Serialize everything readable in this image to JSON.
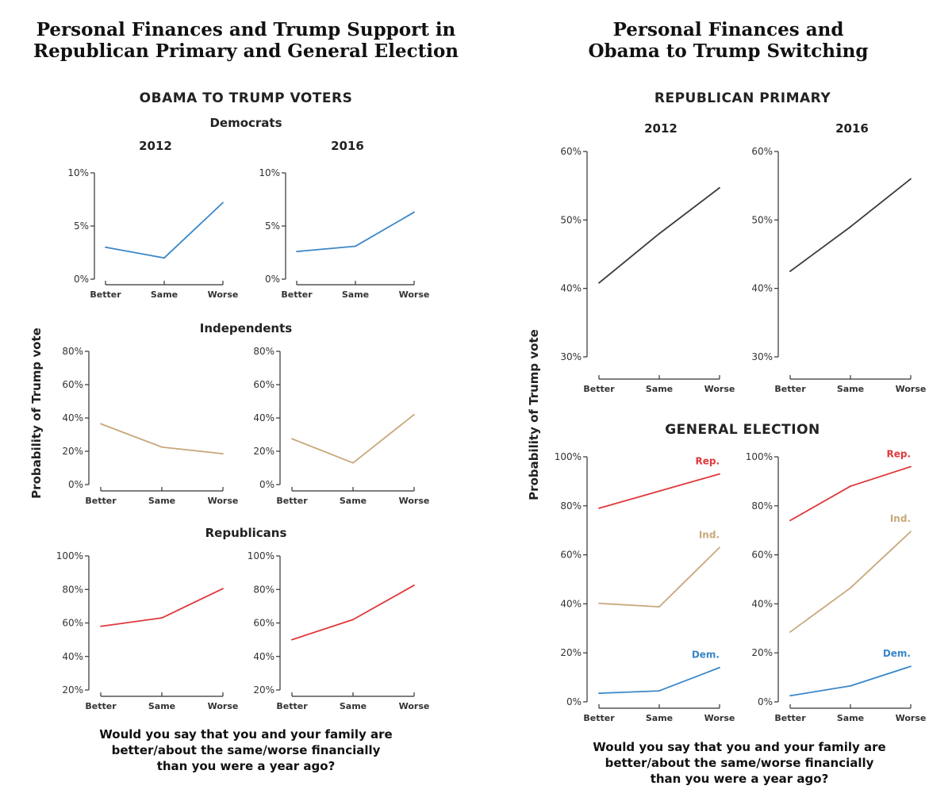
{
  "left": {
    "title_line1": "Personal Finances and Trump Support in",
    "title_line2": "Republican Primary and General Election",
    "section": "OBAMA TO TRUMP VOTERS",
    "group_dem": "Democrats",
    "group_ind": "Independents",
    "group_rep": "Republicans",
    "year_a": "2012",
    "year_b": "2016",
    "ylabel": "Probability of Trump vote",
    "footer_line1": "Would you say that you and your family are",
    "footer_line2": "better/about the same/worse financially",
    "footer_line3": "than you were a year ago?"
  },
  "right": {
    "title_line1": "Personal Finances and",
    "title_line2": "Obama to Trump Switching",
    "section_primary": "REPUBLICAN PRIMARY",
    "section_general": "GENERAL ELECTION",
    "year_a": "2012",
    "year_b": "2016",
    "ylabel": "Probability of Trump vote",
    "footer_line1": "Would you say that you and your family are",
    "footer_line2": "better/about the same/worse financially",
    "footer_line3": "than you were a year ago?"
  },
  "colors": {
    "dem": "#3a87c8",
    "ind": "#c9a87c",
    "rep": "#e0373b",
    "primary": "#3a3a3a",
    "axis": "#333333"
  },
  "chart_data": [
    {
      "id": "dem-2012",
      "type": "line",
      "categories": [
        "Better",
        "Same",
        "Worse"
      ],
      "ylim": [
        0,
        10
      ],
      "yticks": [
        0,
        5,
        10
      ],
      "ytick_labels": [
        "0%",
        "5%",
        "10%"
      ],
      "series": [
        {
          "color_key": "dem",
          "values": [
            3.0,
            2.0,
            7.2
          ]
        }
      ]
    },
    {
      "id": "dem-2016",
      "type": "line",
      "categories": [
        "Better",
        "Same",
        "Worse"
      ],
      "ylim": [
        0,
        10
      ],
      "yticks": [
        0,
        5,
        10
      ],
      "ytick_labels": [
        "0%",
        "5%",
        "10%"
      ],
      "series": [
        {
          "color_key": "dem",
          "values": [
            2.6,
            3.1,
            6.3
          ]
        }
      ]
    },
    {
      "id": "ind-2012",
      "type": "line",
      "categories": [
        "Better",
        "Same",
        "Worse"
      ],
      "ylim": [
        0,
        80
      ],
      "yticks": [
        0,
        20,
        40,
        60,
        80
      ],
      "ytick_labels": [
        "0%",
        "20%",
        "40%",
        "60%",
        "80%"
      ],
      "series": [
        {
          "color_key": "ind",
          "values": [
            36.5,
            22.5,
            18.5
          ]
        }
      ]
    },
    {
      "id": "ind-2016",
      "type": "line",
      "categories": [
        "Better",
        "Same",
        "Worse"
      ],
      "ylim": [
        0,
        80
      ],
      "yticks": [
        0,
        20,
        40,
        60,
        80
      ],
      "ytick_labels": [
        "0%",
        "20%",
        "40%",
        "60%",
        "80%"
      ],
      "series": [
        {
          "color_key": "ind",
          "values": [
            27.5,
            13.0,
            42.0
          ]
        }
      ]
    },
    {
      "id": "rep-2012",
      "type": "line",
      "categories": [
        "Better",
        "Same",
        "Worse"
      ],
      "ylim": [
        20,
        100
      ],
      "yticks": [
        20,
        40,
        60,
        80,
        100
      ],
      "ytick_labels": [
        "20%",
        "40%",
        "60%",
        "80%",
        "100%"
      ],
      "series": [
        {
          "color_key": "rep",
          "values": [
            58.0,
            63.0,
            80.5
          ]
        }
      ]
    },
    {
      "id": "rep-2016",
      "type": "line",
      "categories": [
        "Better",
        "Same",
        "Worse"
      ],
      "ylim": [
        20,
        100
      ],
      "yticks": [
        20,
        40,
        60,
        80,
        100
      ],
      "ytick_labels": [
        "20%",
        "40%",
        "60%",
        "80%",
        "100%"
      ],
      "series": [
        {
          "color_key": "rep",
          "values": [
            50.0,
            62.0,
            82.5
          ]
        }
      ]
    },
    {
      "id": "primary-2012",
      "type": "line",
      "categories": [
        "Better",
        "Same",
        "Worse"
      ],
      "ylim": [
        30,
        60
      ],
      "yticks": [
        30,
        40,
        50,
        60
      ],
      "ytick_labels": [
        "30%",
        "40%",
        "50%",
        "60%"
      ],
      "series": [
        {
          "color_key": "primary",
          "values": [
            40.8,
            48.0,
            54.7
          ]
        }
      ]
    },
    {
      "id": "primary-2016",
      "type": "line",
      "categories": [
        "Better",
        "Same",
        "Worse"
      ],
      "ylim": [
        30,
        60
      ],
      "yticks": [
        30,
        40,
        50,
        60
      ],
      "ytick_labels": [
        "30%",
        "40%",
        "50%",
        "60%"
      ],
      "series": [
        {
          "color_key": "primary",
          "values": [
            42.5,
            49.0,
            56.0
          ]
        }
      ]
    },
    {
      "id": "general-2012",
      "type": "line",
      "categories": [
        "Better",
        "Same",
        "Worse"
      ],
      "ylim": [
        0,
        100
      ],
      "yticks": [
        0,
        20,
        40,
        60,
        80,
        100
      ],
      "ytick_labels": [
        "0%",
        "20%",
        "40%",
        "60%",
        "80%",
        "100%"
      ],
      "series": [
        {
          "name": "Rep.",
          "color_key": "rep",
          "values": [
            79.0,
            86.0,
            93.0
          ]
        },
        {
          "name": "Ind.",
          "color_key": "ind",
          "values": [
            40.2,
            38.8,
            63.0
          ]
        },
        {
          "name": "Dem.",
          "color_key": "dem",
          "values": [
            3.5,
            4.5,
            14.0
          ]
        }
      ]
    },
    {
      "id": "general-2016",
      "type": "line",
      "categories": [
        "Better",
        "Same",
        "Worse"
      ],
      "ylim": [
        0,
        100
      ],
      "yticks": [
        0,
        20,
        40,
        60,
        80,
        100
      ],
      "ytick_labels": [
        "0%",
        "20%",
        "40%",
        "60%",
        "80%",
        "100%"
      ],
      "series": [
        {
          "name": "Rep.",
          "color_key": "rep",
          "values": [
            74.0,
            88.0,
            96.0
          ]
        },
        {
          "name": "Ind.",
          "color_key": "ind",
          "values": [
            28.5,
            46.5,
            69.5
          ]
        },
        {
          "name": "Dem.",
          "color_key": "dem",
          "values": [
            2.5,
            6.5,
            14.5
          ]
        }
      ]
    }
  ]
}
